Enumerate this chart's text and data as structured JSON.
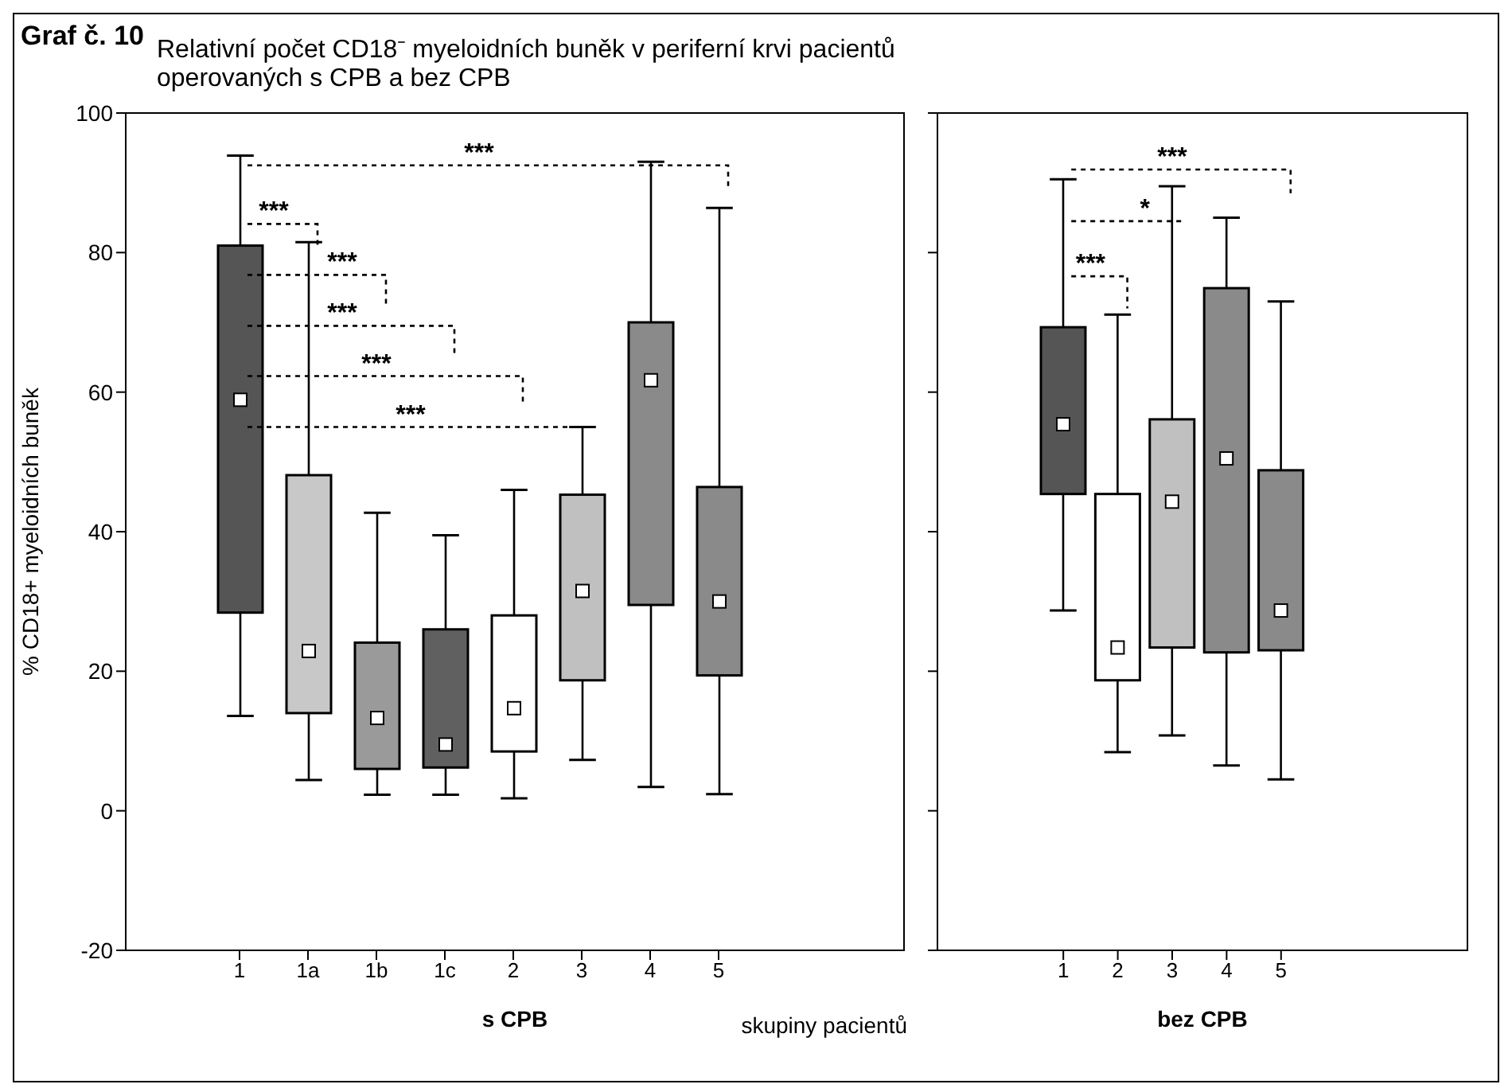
{
  "chart_data": [
    {
      "type": "box",
      "title": "Graf č. 10",
      "subtitle": "Relativní počet CD18⁻ myeloidních buněk v periferní krvi pacientů operovaných s CPB a bez CPB",
      "xlabel": "s CPB",
      "ylabel": "% CD18+ myeloidních buněk",
      "categories": [
        "1",
        "1a",
        "1b",
        "1c",
        "2",
        "3",
        "4",
        "5"
      ],
      "colors": [
        "#555555",
        "#c8c8c8",
        "#9a9a9a",
        "#606060",
        "#ffffff",
        "#c0c0c0",
        "#8a8a8a",
        "#8a8a8a"
      ],
      "boxes": [
        {
          "low": 13.6,
          "q1": 28.4,
          "median": 58.9,
          "q3": 81,
          "high": 93.9
        },
        {
          "low": 4.4,
          "q1": 14,
          "median": 22.9,
          "q3": 48.1,
          "high": 81.5
        },
        {
          "low": 2.3,
          "q1": 6,
          "median": 13.3,
          "q3": 24.1,
          "high": 42.7
        },
        {
          "low": 2.3,
          "q1": 6.2,
          "median": 9.5,
          "q3": 26,
          "high": 39.5
        },
        {
          "low": 1.8,
          "q1": 8.5,
          "median": 14.7,
          "q3": 28,
          "high": 46
        },
        {
          "low": 7.3,
          "q1": 18.7,
          "median": 31.5,
          "q3": 45.3,
          "high": 55
        },
        {
          "low": 3.4,
          "q1": 29.5,
          "median": 61.7,
          "q3": 70,
          "high": 93
        },
        {
          "low": 2.4,
          "q1": 19.4,
          "median": 30,
          "q3": 46.4,
          "high": 86.4
        }
      ],
      "ylim": [
        -20,
        100
      ],
      "yticks": [
        -20,
        0,
        20,
        40,
        60,
        80,
        100
      ],
      "grid": false,
      "annotations": [
        "***",
        "***",
        "***",
        "***",
        "***",
        "***",
        "skupiny pacientů"
      ]
    },
    {
      "type": "box",
      "xlabel": "bez CPB",
      "categories": [
        "1",
        "2",
        "3",
        "4",
        "5"
      ],
      "colors": [
        "#555555",
        "#ffffff",
        "#c0c0c0",
        "#8a8a8a",
        "#8a8a8a"
      ],
      "boxes": [
        {
          "low": 28.7,
          "q1": 45.4,
          "median": 55.4,
          "q3": 69.3,
          "high": 90.5
        },
        {
          "low": 8.4,
          "q1": 18.7,
          "median": 23.4,
          "q3": 45.4,
          "high": 71.1
        },
        {
          "low": 10.8,
          "q1": 23.4,
          "median": 44.3,
          "q3": 56.1,
          "high": 89.5
        },
        {
          "low": 6.5,
          "q1": 22.7,
          "median": 50.5,
          "q3": 74.9,
          "high": 85
        },
        {
          "low": 4.5,
          "q1": 23,
          "median": 28.7,
          "q3": 48.8,
          "high": 73
        }
      ],
      "ylim": [
        -20,
        100
      ],
      "yticks": [
        -20,
        0,
        20,
        40,
        60,
        80,
        100
      ],
      "grid": false,
      "tick_labels": "x",
      "annotations": [
        "***",
        "*",
        "***"
      ]
    }
  ]
}
